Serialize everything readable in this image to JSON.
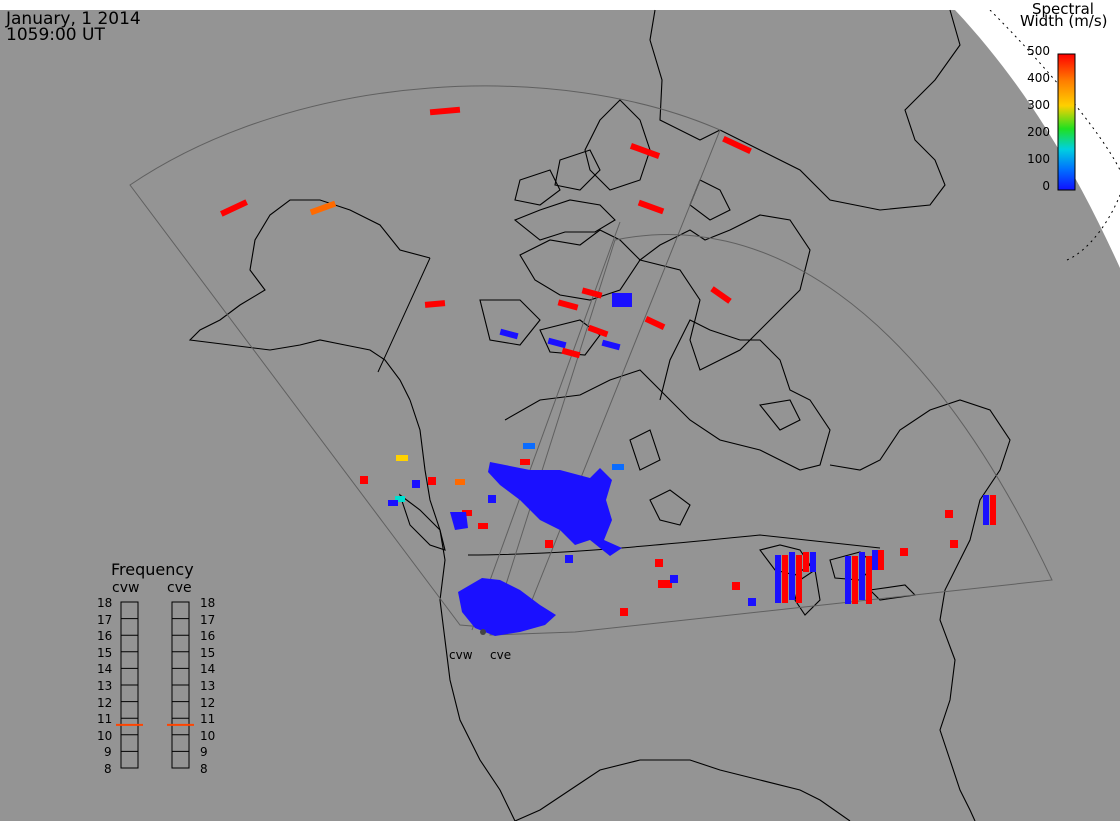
{
  "header": {
    "date": "January, 1 2014",
    "time": "1059:00 UT"
  },
  "colorbar": {
    "title_line1": "Spectral",
    "title_line2": "Width (m/s)",
    "ticks": [
      "500",
      "400",
      "300",
      "200",
      "100",
      "0"
    ],
    "range": [
      0,
      500
    ],
    "colors": [
      "#ff0000",
      "#ff7f00",
      "#ffd000",
      "#20e020",
      "#00d0e0",
      "#0070ff",
      "#1010ff"
    ]
  },
  "frequency_panel": {
    "title": "Frequency",
    "radars": [
      {
        "name": "cvw",
        "freq_mhz": 10.6,
        "marker_color": "#ff4400"
      },
      {
        "name": "cve",
        "freq_mhz": 10.6,
        "marker_color": "#ff4400"
      }
    ],
    "levels": [
      "18",
      "17",
      "16",
      "15",
      "14",
      "13",
      "12",
      "11",
      "10",
      "9",
      "8"
    ]
  },
  "sites": {
    "cvw_label": "cvw",
    "cve_label": "cve"
  },
  "colors": {
    "background": "#949494",
    "land_outline": "#000000",
    "ocean_corner": "#ffffff",
    "fov_line": "#555555"
  }
}
